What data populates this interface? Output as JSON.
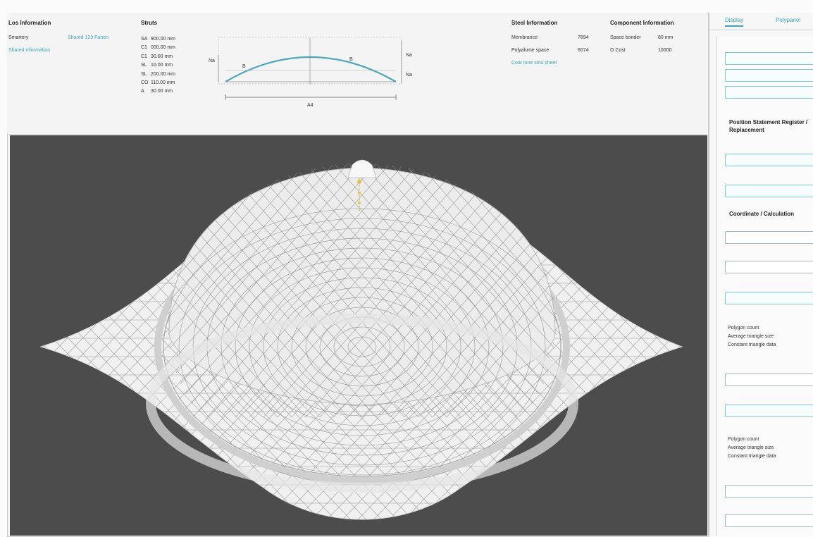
{
  "info": {
    "section1": {
      "title": "Los Information",
      "row1_label": "Smartery",
      "row1_value": "Shared 123 Fanon",
      "link": "Shared information"
    },
    "struts": {
      "title": "Struts",
      "rows": [
        {
          "code": "SA",
          "value": "900.00 mm"
        },
        {
          "code": "C1",
          "value": "000.00 mm"
        },
        {
          "code": "C1",
          "value": "30.00 mm"
        },
        {
          "code": "SL",
          "value": "10.00 mm"
        },
        {
          "code": "SL",
          "value": "200.00 mm"
        },
        {
          "code": "CO",
          "value": "110.00 mm"
        },
        {
          "code": "A",
          "value": "30.00 mm"
        }
      ]
    },
    "profile": {
      "left_label": "Na",
      "right_label_top": "Na",
      "right_label_bottom": "Na",
      "inner_left": "B",
      "inner_right": "B",
      "bottom_label": "A4"
    },
    "steel": {
      "title": "Steel Information",
      "row1_label": "Membrance",
      "row1_value": "7894",
      "row2_label": "Polyalume space",
      "row2_value": "6074",
      "link": "Coat tune sinu sheet"
    },
    "component": {
      "title": "Component Information",
      "row1_label": "Space bonder",
      "row1_value": "80 mm",
      "row2_label": "O Cost",
      "row2_value": "10000"
    }
  },
  "sidepanel": {
    "tabs": [
      "Display",
      "Polypanel"
    ],
    "section_title_1": "Position Statement Register / Replacement",
    "section_title_2": "Coordinate / Calculation",
    "text_group_1": [
      "Polygon count",
      "Average triangle size",
      "Constant triangle data"
    ],
    "text_group_2": [
      "Polygon count",
      "Average triangle size",
      "Constant triangle data"
    ]
  },
  "colors": {
    "accent": "#39a7bd",
    "viewport_bg": "#4c4c4c",
    "dome": "#f2f2f2",
    "apex_marker": "#e8c24a"
  }
}
